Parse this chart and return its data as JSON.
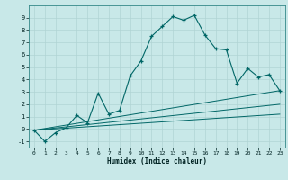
{
  "xlabel": "Humidex (Indice chaleur)",
  "bg_color": "#c8e8e8",
  "grid_color": "#b0d4d4",
  "line_color": "#006666",
  "xlim": [
    -0.5,
    23.5
  ],
  "ylim": [
    -1.5,
    10.0
  ],
  "yticks": [
    -1,
    0,
    1,
    2,
    3,
    4,
    5,
    6,
    7,
    8,
    9
  ],
  "xticks": [
    0,
    1,
    2,
    3,
    4,
    5,
    6,
    7,
    8,
    9,
    10,
    11,
    12,
    13,
    14,
    15,
    16,
    17,
    18,
    19,
    20,
    21,
    22,
    23
  ],
  "main_x": [
    0,
    1,
    2,
    3,
    4,
    5,
    6,
    7,
    8,
    9,
    10,
    11,
    12,
    13,
    14,
    15,
    16,
    17,
    18,
    19,
    20,
    21,
    22,
    23
  ],
  "main_y": [
    -0.1,
    -1.0,
    -0.3,
    0.1,
    1.1,
    0.5,
    2.9,
    1.2,
    1.5,
    4.3,
    5.5,
    7.5,
    8.3,
    9.1,
    8.8,
    9.2,
    7.6,
    6.5,
    6.4,
    3.7,
    4.9,
    4.2,
    4.4,
    3.1
  ],
  "line2_x": [
    0,
    23
  ],
  "line2_y": [
    -0.1,
    3.1
  ],
  "line3_x": [
    0,
    23
  ],
  "line3_y": [
    -0.1,
    2.0
  ],
  "line4_x": [
    0,
    23
  ],
  "line4_y": [
    -0.1,
    1.2
  ]
}
